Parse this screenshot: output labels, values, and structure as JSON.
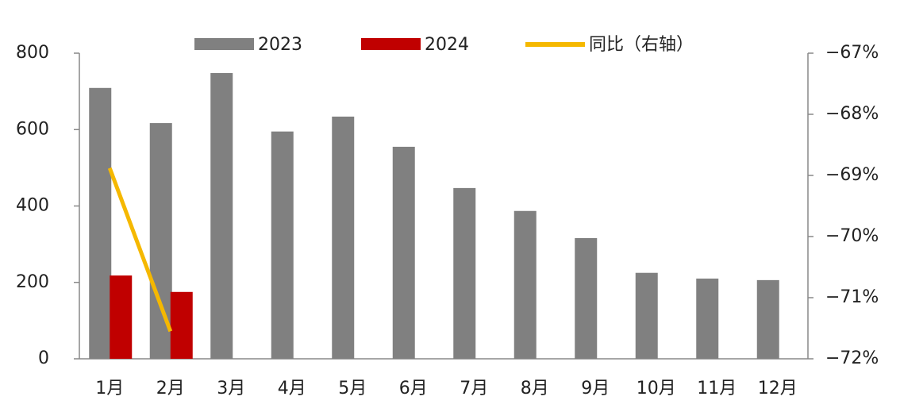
{
  "chart_data": {
    "type": "bar",
    "categories": [
      "1月",
      "2月",
      "3月",
      "4月",
      "5月",
      "6月",
      "7月",
      "8月",
      "9月",
      "10月",
      "11月",
      "12月"
    ],
    "series": [
      {
        "name": "2023",
        "color": "#808080",
        "type": "bar",
        "values": [
          709,
          617,
          748,
          595,
          634,
          555,
          447,
          387,
          316,
          225,
          210,
          206
        ]
      },
      {
        "name": "2024",
        "color": "#c00000",
        "type": "bar",
        "values": [
          218,
          175,
          null,
          null,
          null,
          null,
          null,
          null,
          null,
          null,
          null,
          null
        ]
      },
      {
        "name": "同比（右轴）",
        "color": "#f5b800",
        "type": "line",
        "axis": "y2",
        "values": [
          -68.88,
          -71.55,
          null,
          null,
          null,
          null,
          null,
          null,
          null,
          null,
          null,
          null
        ]
      }
    ],
    "ylim": [
      0,
      800
    ],
    "yticks": [
      0,
      200,
      400,
      600,
      800
    ],
    "y2lim": [
      -72,
      -67
    ],
    "y2ticks": [
      {
        "value": -67,
        "label": "−67%"
      },
      {
        "value": -68,
        "label": "−68%"
      },
      {
        "value": -69,
        "label": "−69%"
      },
      {
        "value": -70,
        "label": "−70%"
      },
      {
        "value": -71,
        "label": "−71%"
      },
      {
        "value": -72,
        "label": "−72%"
      }
    ],
    "legend": "top"
  }
}
